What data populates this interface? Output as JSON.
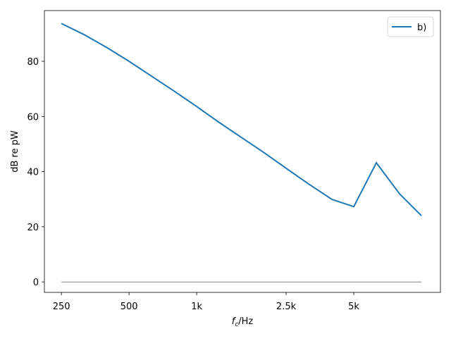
{
  "chart_data": {
    "type": "line",
    "xlabel": [
      "f",
      "c",
      "/Hz"
    ],
    "ylabel": "dB re pW",
    "x": [
      250,
      315,
      400,
      500,
      630,
      800,
      1000,
      1250,
      1600,
      2000,
      2500,
      3150,
      4000,
      5000,
      6300,
      8000,
      10000
    ],
    "series": [
      {
        "name": "b)",
        "color": "#1f77b4",
        "width": 2,
        "values": [
          93.7,
          89.7,
          84.9,
          80,
          74.6,
          69,
          63.6,
          58,
          52.1,
          46.8,
          41.2,
          35.5,
          29.9,
          27.3,
          43.2,
          31.9,
          24.0
        ]
      },
      {
        "color": "#000000",
        "width": 0.6,
        "values": [
          0,
          0,
          0,
          0,
          0,
          0,
          0,
          0,
          0,
          0,
          0,
          0,
          0,
          0,
          0,
          0,
          0
        ]
      }
    ],
    "xscale": "log",
    "xlim": [
      210,
      12150
    ],
    "ylim": [
      -3.8,
      98.4
    ],
    "xticks": [
      250,
      500,
      {
        "value": 1000,
        "label": "1k"
      },
      {
        "value": 2500,
        "label": "2.5k"
      },
      {
        "value": 5000,
        "label": "5k"
      }
    ],
    "yticks": [
      0,
      20,
      40,
      60,
      80
    ],
    "legend": "upper right"
  }
}
